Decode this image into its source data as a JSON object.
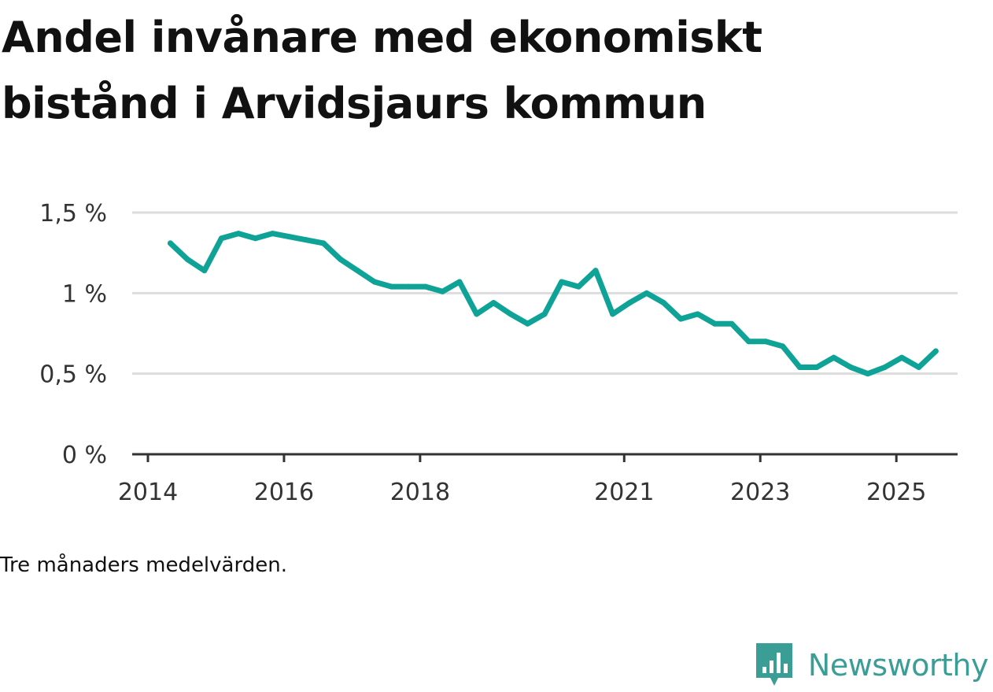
{
  "title": "Andel invånare med ekonomiskt bistånd i Arvidsjaurs kommun",
  "caption": "Tre månaders medelvärden.",
  "brand": {
    "name": "Newsworthy",
    "icon": "newsworthy-logo-icon",
    "color": "#3a9d96"
  },
  "chart_data": {
    "type": "line",
    "title": "Andel invånare med ekonomiskt bistånd i Arvidsjaurs kommun",
    "xlabel": "",
    "ylabel": "",
    "xlim": [
      2014,
      2025.9
    ],
    "ylim": [
      0,
      1.5
    ],
    "grid": true,
    "x_ticks": [
      {
        "value": 2014,
        "label": "2014"
      },
      {
        "value": 2016,
        "label": "2016"
      },
      {
        "value": 2018,
        "label": "2018"
      },
      {
        "value": 2021,
        "label": "2021"
      },
      {
        "value": 2023,
        "label": "2023"
      },
      {
        "value": 2025,
        "label": "2025"
      }
    ],
    "y_ticks": [
      {
        "value": 0,
        "label": "0 %"
      },
      {
        "value": 0.5,
        "label": "0,5 %"
      },
      {
        "value": 1.0,
        "label": "1 %"
      },
      {
        "value": 1.5,
        "label": "1,5 %"
      }
    ],
    "series": [
      {
        "name": "Andel invånare med ekonomiskt bistånd",
        "color": "#0fa397",
        "x": [
          2014.33,
          2014.58,
          2014.83,
          2015.08,
          2015.33,
          2015.58,
          2015.83,
          2016.08,
          2016.33,
          2016.58,
          2016.83,
          2017.08,
          2017.33,
          2017.58,
          2017.83,
          2018.08,
          2018.33,
          2018.58,
          2018.83,
          2019.08,
          2019.33,
          2019.58,
          2019.83,
          2020.08,
          2020.33,
          2020.58,
          2020.83,
          2021.08,
          2021.33,
          2021.58,
          2021.83,
          2022.08,
          2022.33,
          2022.58,
          2022.83,
          2023.08,
          2023.33,
          2023.58,
          2023.83,
          2024.08,
          2024.33,
          2024.58,
          2024.83,
          2025.08,
          2025.33,
          2025.58
        ],
        "values": [
          1.31,
          1.21,
          1.14,
          1.34,
          1.37,
          1.34,
          1.37,
          1.35,
          1.33,
          1.31,
          1.21,
          1.14,
          1.07,
          1.04,
          1.04,
          1.04,
          1.01,
          1.07,
          0.87,
          0.94,
          0.87,
          0.81,
          0.87,
          1.07,
          1.04,
          1.14,
          0.87,
          0.94,
          1.0,
          0.94,
          0.84,
          0.87,
          0.81,
          0.81,
          0.7,
          0.7,
          0.67,
          0.54,
          0.54,
          0.6,
          0.54,
          0.5,
          0.54,
          0.6,
          0.54,
          0.64
        ]
      }
    ]
  }
}
